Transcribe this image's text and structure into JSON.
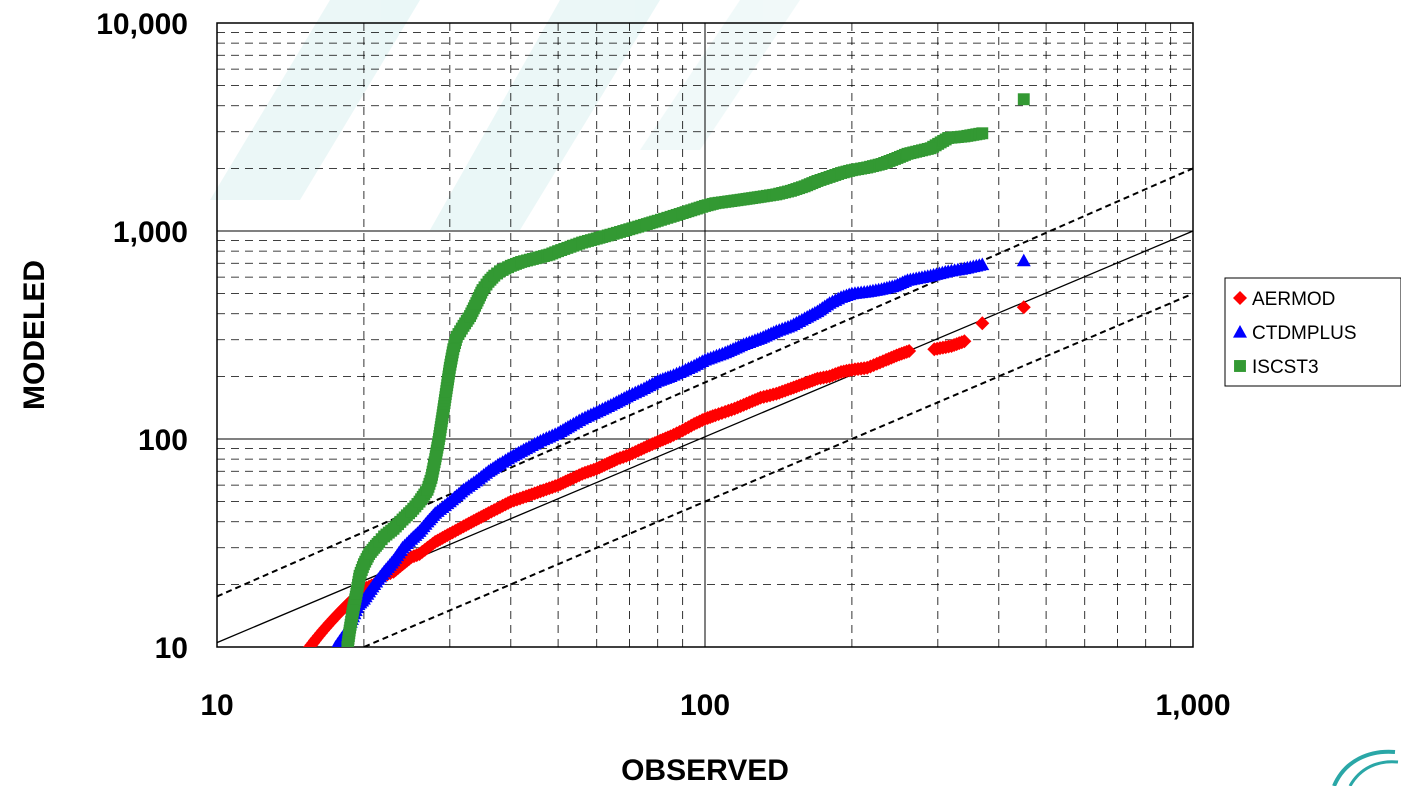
{
  "chart_data": {
    "type": "scatter",
    "xscale": "log",
    "yscale": "log",
    "xlim": [
      10,
      1000
    ],
    "ylim": [
      10,
      10000
    ],
    "xlabel": "OBSERVED",
    "ylabel": "MODELED",
    "x_tick_labels": [
      "10",
      "100",
      "1,000"
    ],
    "y_tick_labels": [
      "10",
      "100",
      "1,000",
      "10,000"
    ],
    "x_ticks": [
      10,
      100,
      1000
    ],
    "y_ticks": [
      10,
      100,
      1000,
      10000
    ],
    "grid": {
      "major": "solid",
      "minor": "dashed"
    },
    "legend_position": "right",
    "reference_lines": [
      {
        "style": "solid",
        "points": [
          [
            10,
            10.5
          ],
          [
            1000,
            1000
          ]
        ]
      },
      {
        "style": "dashed",
        "points": [
          [
            10,
            17.5
          ],
          [
            1000,
            2000
          ]
        ]
      },
      {
        "style": "dashed",
        "points": [
          [
            10,
            5
          ],
          [
            1000,
            500
          ]
        ]
      }
    ],
    "series": [
      {
        "name": "AERMOD",
        "marker": "diamond",
        "color": "#ff0000",
        "points": [
          [
            15.5,
            10
          ],
          [
            16,
            11
          ],
          [
            16.5,
            12
          ],
          [
            17,
            13
          ],
          [
            17.5,
            14
          ],
          [
            18,
            15
          ],
          [
            18.5,
            16
          ],
          [
            19,
            17
          ],
          [
            19.5,
            18
          ],
          [
            20,
            19
          ],
          [
            21,
            20
          ],
          [
            22,
            22
          ],
          [
            23,
            23
          ],
          [
            24,
            25
          ],
          [
            25,
            27
          ],
          [
            26,
            28
          ],
          [
            27,
            30
          ],
          [
            28,
            32
          ],
          [
            30,
            35
          ],
          [
            32,
            38
          ],
          [
            34,
            41
          ],
          [
            36,
            44
          ],
          [
            38,
            47
          ],
          [
            40,
            50
          ],
          [
            43,
            53
          ],
          [
            46,
            56
          ],
          [
            50,
            60
          ],
          [
            53,
            64
          ],
          [
            56,
            68
          ],
          [
            60,
            72
          ],
          [
            63,
            76
          ],
          [
            66,
            80
          ],
          [
            70,
            84
          ],
          [
            73,
            88
          ],
          [
            76,
            92
          ],
          [
            80,
            97
          ],
          [
            85,
            103
          ],
          [
            90,
            110
          ],
          [
            95,
            118
          ],
          [
            100,
            125
          ],
          [
            105,
            130
          ],
          [
            110,
            135
          ],
          [
            115,
            140
          ],
          [
            120,
            146
          ],
          [
            125,
            152
          ],
          [
            130,
            158
          ],
          [
            140,
            165
          ],
          [
            150,
            175
          ],
          [
            160,
            185
          ],
          [
            170,
            195
          ],
          [
            180,
            200
          ],
          [
            190,
            210
          ],
          [
            200,
            215
          ],
          [
            215,
            220
          ],
          [
            225,
            230
          ],
          [
            235,
            240
          ],
          [
            250,
            255
          ],
          [
            262,
            265
          ],
          [
            295,
            270
          ],
          [
            320,
            280
          ],
          [
            340,
            295
          ],
          [
            370,
            360
          ],
          [
            450,
            430
          ]
        ]
      },
      {
        "name": "CTDMPLUS",
        "marker": "triangle",
        "color": "#0000ff",
        "points": [
          [
            17.5,
            10
          ],
          [
            18,
            11
          ],
          [
            18.5,
            12
          ],
          [
            19,
            14
          ],
          [
            19.5,
            16
          ],
          [
            20,
            17
          ],
          [
            21,
            20
          ],
          [
            22,
            23
          ],
          [
            23,
            26
          ],
          [
            24,
            30
          ],
          [
            25,
            33
          ],
          [
            26,
            36
          ],
          [
            27,
            40
          ],
          [
            28,
            44
          ],
          [
            30,
            50
          ],
          [
            32,
            57
          ],
          [
            34,
            63
          ],
          [
            36,
            70
          ],
          [
            38,
            76
          ],
          [
            40,
            82
          ],
          [
            43,
            90
          ],
          [
            46,
            98
          ],
          [
            50,
            107
          ],
          [
            53,
            116
          ],
          [
            56,
            125
          ],
          [
            60,
            135
          ],
          [
            65,
            148
          ],
          [
            70,
            162
          ],
          [
            75,
            175
          ],
          [
            80,
            190
          ],
          [
            85,
            200
          ],
          [
            90,
            212
          ],
          [
            95,
            225
          ],
          [
            100,
            240
          ],
          [
            110,
            260
          ],
          [
            120,
            285
          ],
          [
            130,
            305
          ],
          [
            140,
            330
          ],
          [
            150,
            350
          ],
          [
            160,
            380
          ],
          [
            170,
            410
          ],
          [
            180,
            450
          ],
          [
            190,
            480
          ],
          [
            200,
            500
          ],
          [
            215,
            510
          ],
          [
            230,
            525
          ],
          [
            245,
            545
          ],
          [
            260,
            580
          ],
          [
            290,
            610
          ],
          [
            315,
            640
          ],
          [
            340,
            660
          ],
          [
            370,
            690
          ],
          [
            450,
            720
          ]
        ]
      },
      {
        "name": "ISCST3",
        "marker": "square",
        "color": "#339933",
        "points": [
          [
            18.5,
            10
          ],
          [
            18.7,
            12
          ],
          [
            19,
            15
          ],
          [
            19.3,
            18
          ],
          [
            19.6,
            22
          ],
          [
            20,
            25
          ],
          [
            20.5,
            28
          ],
          [
            21,
            30
          ],
          [
            21.5,
            32
          ],
          [
            22,
            34
          ],
          [
            23,
            37
          ],
          [
            24,
            41
          ],
          [
            25,
            45
          ],
          [
            26,
            50
          ],
          [
            27,
            57
          ],
          [
            27.5,
            65
          ],
          [
            28,
            80
          ],
          [
            28.5,
            100
          ],
          [
            29,
            130
          ],
          [
            29.5,
            170
          ],
          [
            30,
            220
          ],
          [
            30.5,
            270
          ],
          [
            31,
            310
          ],
          [
            32,
            350
          ],
          [
            33,
            390
          ],
          [
            34,
            450
          ],
          [
            35,
            520
          ],
          [
            36,
            570
          ],
          [
            37,
            610
          ],
          [
            38,
            640
          ],
          [
            40,
            680
          ],
          [
            42,
            710
          ],
          [
            45,
            740
          ],
          [
            48,
            770
          ],
          [
            50,
            800
          ],
          [
            53,
            840
          ],
          [
            56,
            880
          ],
          [
            60,
            920
          ],
          [
            64,
            960
          ],
          [
            68,
            1000
          ],
          [
            72,
            1040
          ],
          [
            76,
            1080
          ],
          [
            80,
            1120
          ],
          [
            85,
            1170
          ],
          [
            90,
            1220
          ],
          [
            95,
            1270
          ],
          [
            100,
            1320
          ],
          [
            105,
            1360
          ],
          [
            110,
            1380
          ],
          [
            120,
            1420
          ],
          [
            130,
            1460
          ],
          [
            140,
            1500
          ],
          [
            150,
            1560
          ],
          [
            160,
            1640
          ],
          [
            170,
            1740
          ],
          [
            180,
            1820
          ],
          [
            190,
            1900
          ],
          [
            200,
            1960
          ],
          [
            215,
            2020
          ],
          [
            230,
            2100
          ],
          [
            245,
            2220
          ],
          [
            260,
            2350
          ],
          [
            290,
            2500
          ],
          [
            315,
            2800
          ],
          [
            340,
            2850
          ],
          [
            370,
            2950
          ],
          [
            450,
            4300
          ]
        ]
      }
    ]
  }
}
